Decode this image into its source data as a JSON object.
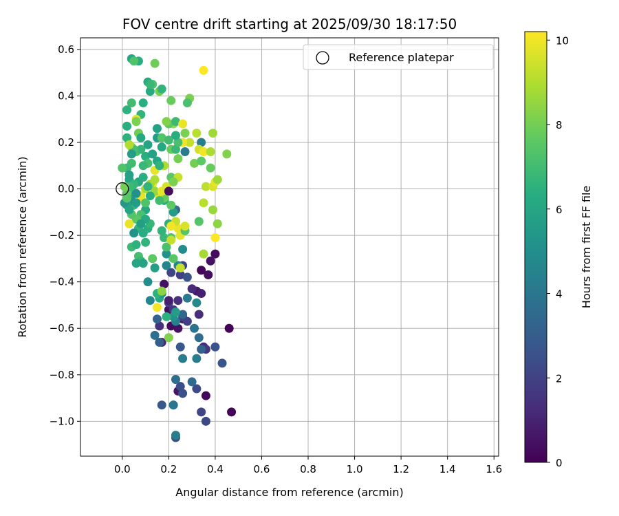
{
  "chart_data": {
    "type": "scatter",
    "title": "FOV centre drift starting at 2025/09/30 18:17:50",
    "xlabel": "Angular distance from reference (arcmin)",
    "ylabel": "Rotation from reference (arcmin)",
    "xlim": [
      -0.18,
      1.62
    ],
    "ylim": [
      -1.15,
      0.65
    ],
    "xticks": [
      0.0,
      0.2,
      0.4,
      0.6,
      0.8,
      1.0,
      1.2,
      1.4,
      1.6
    ],
    "xtick_labels": [
      "0.0",
      "0.2",
      "0.4",
      "0.6",
      "0.8",
      "1.0",
      "1.2",
      "1.4",
      "1.6"
    ],
    "yticks": [
      0.6,
      0.4,
      0.2,
      0.0,
      -0.2,
      -0.4,
      -0.6,
      -0.8,
      -1.0
    ],
    "ytick_labels": [
      "0.6",
      "0.4",
      "0.2",
      "0.0",
      "−0.2",
      "−0.4",
      "−0.6",
      "−0.8",
      "−1.0"
    ],
    "grid": true,
    "legend": {
      "label": "Reference platepar",
      "position": "top-right"
    },
    "reference_point": {
      "x": 0.0,
      "y": 0.0
    },
    "colorbar": {
      "label": "Hours from first FF file",
      "range": [
        0,
        10.2
      ],
      "ticks": [
        0,
        2,
        4,
        6,
        8,
        10
      ],
      "tick_labels": [
        "0",
        "2",
        "4",
        "6",
        "8",
        "10"
      ],
      "colormap": "viridis"
    },
    "points": [
      [
        0.47,
        -0.96,
        0.1
      ],
      [
        0.46,
        -0.6,
        0.1
      ],
      [
        0.36,
        -0.89,
        0.2
      ],
      [
        0.24,
        -0.87,
        0.6
      ],
      [
        0.18,
        -0.41,
        0.5
      ],
      [
        0.2,
        -0.52,
        0.4
      ],
      [
        0.21,
        -0.59,
        0.3
      ],
      [
        0.24,
        -0.6,
        0.5
      ],
      [
        0.26,
        -0.56,
        0.8
      ],
      [
        0.34,
        -0.35,
        0.2
      ],
      [
        0.37,
        -0.37,
        0.4
      ],
      [
        0.4,
        -0.28,
        0.3
      ],
      [
        0.38,
        -0.31,
        0.5
      ],
      [
        0.32,
        -0.44,
        0.6
      ],
      [
        0.34,
        -0.45,
        0.9
      ],
      [
        0.3,
        -0.43,
        1.2
      ],
      [
        0.33,
        -0.54,
        1.3
      ],
      [
        0.35,
        -0.68,
        1.2
      ],
      [
        0.36,
        -0.69,
        1.6
      ],
      [
        0.4,
        -0.68,
        2.6
      ],
      [
        0.43,
        -0.75,
        2.7
      ],
      [
        0.34,
        -0.96,
        2.1
      ],
      [
        0.36,
        -1.0,
        2.2
      ],
      [
        0.32,
        -0.86,
        2.3
      ],
      [
        0.26,
        -0.88,
        2.5
      ],
      [
        0.23,
        -1.07,
        2.4
      ],
      [
        0.25,
        -0.85,
        2.4
      ],
      [
        0.22,
        -0.93,
        3.1
      ],
      [
        0.23,
        -0.82,
        3.7
      ],
      [
        0.3,
        -0.83,
        3.5
      ],
      [
        0.17,
        -0.93,
        2.8
      ],
      [
        0.22,
        -0.93,
        4.0
      ],
      [
        0.23,
        -1.06,
        4.3
      ],
      [
        0.24,
        -0.48,
        1.4
      ],
      [
        0.22,
        -0.52,
        1.6
      ],
      [
        0.26,
        -0.55,
        2.0
      ],
      [
        0.28,
        -0.57,
        1.9
      ],
      [
        0.2,
        -0.49,
        1.8
      ],
      [
        0.16,
        -0.59,
        1.4
      ],
      [
        0.17,
        -0.66,
        1.1
      ],
      [
        0.15,
        -0.56,
        3.2
      ],
      [
        0.14,
        -0.63,
        3.7
      ],
      [
        0.16,
        -0.66,
        3.1
      ],
      [
        0.25,
        -0.68,
        2.8
      ],
      [
        0.26,
        -0.73,
        4.2
      ],
      [
        0.32,
        -0.73,
        4.3
      ],
      [
        0.34,
        -0.69,
        3.2
      ],
      [
        0.33,
        -0.64,
        3.6
      ],
      [
        0.31,
        -0.6,
        3.9
      ],
      [
        0.25,
        -0.37,
        1.9
      ],
      [
        0.21,
        -0.36,
        2.1
      ],
      [
        0.26,
        -0.33,
        2.2
      ],
      [
        0.28,
        -0.38,
        2.6
      ],
      [
        0.32,
        -0.49,
        4.8
      ],
      [
        0.28,
        -0.47,
        4.1
      ],
      [
        0.26,
        -0.54,
        3.4
      ],
      [
        0.23,
        -0.57,
        4.4
      ],
      [
        0.22,
        -0.55,
        5.2
      ],
      [
        0.23,
        -0.53,
        5.6
      ],
      [
        0.19,
        -0.55,
        6.5
      ],
      [
        0.16,
        -0.47,
        6.2
      ],
      [
        0.17,
        -0.45,
        5.4
      ],
      [
        0.12,
        -0.48,
        4.6
      ],
      [
        0.11,
        -0.4,
        5.0
      ],
      [
        0.14,
        -0.34,
        5.7
      ],
      [
        0.19,
        -0.33,
        4.6
      ],
      [
        0.26,
        -0.26,
        4.9
      ],
      [
        0.24,
        -0.33,
        4.6
      ],
      [
        0.23,
        -0.09,
        3.6
      ],
      [
        0.22,
        -0.1,
        5.6
      ],
      [
        0.19,
        -0.28,
        5.1
      ],
      [
        0.19,
        -0.25,
        7.2
      ],
      [
        0.18,
        -0.21,
        6.8
      ],
      [
        0.2,
        -0.15,
        6.4
      ],
      [
        0.17,
        -0.18,
        6.6
      ],
      [
        0.18,
        -0.05,
        6.3
      ],
      [
        0.21,
        -0.21,
        7.3
      ],
      [
        0.22,
        -0.3,
        7.5
      ],
      [
        0.21,
        -0.22,
        9.3
      ],
      [
        0.25,
        -0.2,
        9.8
      ],
      [
        0.24,
        -0.17,
        9.9
      ],
      [
        0.23,
        -0.14,
        9.3
      ],
      [
        0.21,
        -0.16,
        10.0
      ],
      [
        0.25,
        -0.34,
        9.3
      ],
      [
        0.35,
        -0.28,
        8.8
      ],
      [
        0.33,
        -0.14,
        7.4
      ],
      [
        0.35,
        -0.06,
        9.1
      ],
      [
        0.39,
        -0.09,
        8.6
      ],
      [
        0.41,
        -0.15,
        8.4
      ],
      [
        0.4,
        -0.21,
        10.2
      ],
      [
        0.27,
        -0.18,
        7.4
      ],
      [
        0.27,
        -0.16,
        9.6
      ],
      [
        0.21,
        -0.07,
        7.6
      ],
      [
        0.18,
        -0.04,
        7.8
      ],
      [
        0.16,
        -0.02,
        8.7
      ],
      [
        0.15,
        -0.02,
        9.6
      ],
      [
        0.13,
        0.02,
        9.9
      ],
      [
        0.14,
        -0.01,
        8.6
      ],
      [
        0.17,
        -0.01,
        9.8
      ],
      [
        0.19,
        0.01,
        9.6
      ],
      [
        0.2,
        -0.01,
        0.3
      ],
      [
        0.21,
        0.05,
        7.5
      ],
      [
        0.24,
        0.05,
        9.3
      ],
      [
        0.22,
        0.03,
        8.1
      ],
      [
        0.18,
        0.1,
        8.9
      ],
      [
        0.16,
        0.1,
        10.1
      ],
      [
        0.14,
        0.08,
        9.8
      ],
      [
        0.12,
        0.02,
        8.6
      ],
      [
        0.1,
        0.0,
        8.8
      ],
      [
        0.08,
        -0.03,
        9.6
      ],
      [
        0.08,
        -0.04,
        9.9
      ],
      [
        0.05,
        -0.07,
        6.7
      ],
      [
        0.04,
        -0.05,
        5.2
      ],
      [
        0.02,
        -0.07,
        5.9
      ],
      [
        0.01,
        -0.06,
        5.4
      ],
      [
        0.03,
        -0.02,
        6.2
      ],
      [
        0.04,
        0.0,
        6.9
      ],
      [
        0.06,
        -0.02,
        5.1
      ],
      [
        0.07,
        0.03,
        6.1
      ],
      [
        0.09,
        0.05,
        6.4
      ],
      [
        0.11,
        0.01,
        6.6
      ],
      [
        0.12,
        -0.03,
        6.3
      ],
      [
        0.1,
        -0.09,
        6.1
      ],
      [
        0.08,
        -0.11,
        7.2
      ],
      [
        0.06,
        -0.13,
        7.6
      ],
      [
        0.07,
        -0.17,
        6.6
      ],
      [
        0.09,
        -0.19,
        6.3
      ],
      [
        0.11,
        -0.17,
        6.4
      ],
      [
        0.12,
        -0.15,
        6.7
      ],
      [
        0.1,
        -0.13,
        6.2
      ],
      [
        0.08,
        -0.15,
        5.7
      ],
      [
        0.05,
        -0.19,
        5.2
      ],
      [
        0.03,
        -0.15,
        9.9
      ],
      [
        0.04,
        -0.11,
        7.4
      ],
      [
        0.02,
        -0.02,
        7.6
      ],
      [
        0.03,
        0.04,
        5.9
      ],
      [
        0.02,
        0.09,
        6.8
      ],
      [
        0.04,
        0.11,
        7.0
      ],
      [
        0.06,
        0.16,
        7.2
      ],
      [
        0.08,
        0.17,
        6.7
      ],
      [
        0.1,
        0.14,
        6.4
      ],
      [
        0.11,
        0.11,
        7.1
      ],
      [
        0.11,
        0.19,
        5.9
      ],
      [
        0.13,
        0.15,
        5.8
      ],
      [
        0.15,
        0.12,
        6.0
      ],
      [
        0.16,
        0.1,
        6.6
      ],
      [
        0.17,
        0.18,
        6.1
      ],
      [
        0.15,
        0.22,
        5.6
      ],
      [
        0.15,
        0.26,
        5.8
      ],
      [
        0.17,
        0.22,
        7.4
      ],
      [
        0.2,
        0.21,
        7.0
      ],
      [
        0.21,
        0.17,
        7.8
      ],
      [
        0.23,
        0.17,
        6.8
      ],
      [
        0.24,
        0.13,
        8.0
      ],
      [
        0.27,
        0.16,
        4.2
      ],
      [
        0.27,
        0.24,
        8.1
      ],
      [
        0.29,
        0.2,
        9.3
      ],
      [
        0.26,
        0.2,
        10.0
      ],
      [
        0.24,
        0.2,
        7.2
      ],
      [
        0.23,
        0.23,
        6.4
      ],
      [
        0.22,
        0.28,
        8.6
      ],
      [
        0.2,
        0.28,
        7.6
      ],
      [
        0.19,
        0.29,
        8.2
      ],
      [
        0.23,
        0.29,
        6.9
      ],
      [
        0.26,
        0.28,
        9.9
      ],
      [
        0.32,
        0.24,
        9.1
      ],
      [
        0.34,
        0.2,
        4.3
      ],
      [
        0.33,
        0.17,
        9.5
      ],
      [
        0.31,
        0.11,
        8.0
      ],
      [
        0.34,
        0.12,
        7.6
      ],
      [
        0.35,
        0.16,
        10.0
      ],
      [
        0.38,
        0.16,
        8.9
      ],
      [
        0.39,
        0.24,
        8.7
      ],
      [
        0.45,
        0.15,
        8.2
      ],
      [
        0.38,
        0.09,
        7.8
      ],
      [
        0.36,
        0.01,
        9.2
      ],
      [
        0.39,
        0.01,
        9.6
      ],
      [
        0.4,
        0.03,
        9.8
      ],
      [
        0.41,
        0.04,
        8.7
      ],
      [
        0.35,
        0.51,
        10.2
      ],
      [
        0.29,
        0.39,
        8.1
      ],
      [
        0.28,
        0.37,
        7.2
      ],
      [
        0.21,
        0.38,
        7.8
      ],
      [
        0.16,
        0.42,
        8.0
      ],
      [
        0.12,
        0.42,
        6.2
      ],
      [
        0.17,
        0.43,
        6.6
      ],
      [
        0.13,
        0.45,
        7.3
      ],
      [
        0.11,
        0.46,
        6.2
      ],
      [
        0.09,
        0.37,
        6.4
      ],
      [
        0.08,
        0.32,
        6.6
      ],
      [
        0.06,
        0.3,
        9.8
      ],
      [
        0.04,
        0.37,
        7.0
      ],
      [
        0.02,
        0.34,
        6.5
      ],
      [
        0.06,
        0.29,
        8.1
      ],
      [
        0.07,
        0.24,
        7.9
      ],
      [
        0.08,
        0.22,
        6.1
      ],
      [
        0.02,
        0.22,
        6.5
      ],
      [
        0.04,
        0.18,
        8.2
      ],
      [
        0.05,
        0.17,
        7.1
      ],
      [
        0.03,
        0.19,
        9.0
      ],
      [
        0.0,
        0.09,
        7.3
      ],
      [
        0.05,
        0.02,
        6.7
      ],
      [
        0.03,
        0.01,
        6.9
      ],
      [
        0.01,
        0.01,
        8.0
      ],
      [
        0.03,
        0.06,
        5.8
      ],
      [
        0.09,
        0.1,
        6.8
      ],
      [
        0.02,
        -0.04,
        7.5
      ],
      [
        0.03,
        -0.09,
        6.0
      ],
      [
        0.06,
        -0.06,
        5.6
      ],
      [
        0.1,
        -0.06,
        7.3
      ],
      [
        0.14,
        0.04,
        8.9
      ],
      [
        0.16,
        -0.05,
        7.0
      ],
      [
        0.07,
        -0.29,
        7.1
      ],
      [
        0.04,
        -0.25,
        6.9
      ],
      [
        0.06,
        -0.24,
        6.5
      ],
      [
        0.08,
        -0.31,
        6.8
      ],
      [
        0.06,
        -0.32,
        6.0
      ],
      [
        0.09,
        -0.32,
        5.9
      ],
      [
        0.1,
        -0.23,
        6.6
      ],
      [
        0.13,
        -0.3,
        7.6
      ],
      [
        0.15,
        -0.45,
        6.5
      ],
      [
        0.17,
        -0.44,
        8.4
      ],
      [
        0.15,
        -0.51,
        10.1
      ],
      [
        0.2,
        -0.64,
        8.2
      ],
      [
        0.2,
        -0.48,
        0.9
      ],
      [
        0.07,
        0.55,
        6.4
      ],
      [
        0.04,
        0.56,
        6.0
      ],
      [
        0.05,
        0.55,
        7.3
      ],
      [
        0.14,
        0.54,
        7.9
      ],
      [
        0.12,
        0.45,
        6.8
      ],
      [
        0.02,
        0.27,
        6.4
      ],
      [
        0.04,
        0.15,
        5.6
      ]
    ]
  }
}
